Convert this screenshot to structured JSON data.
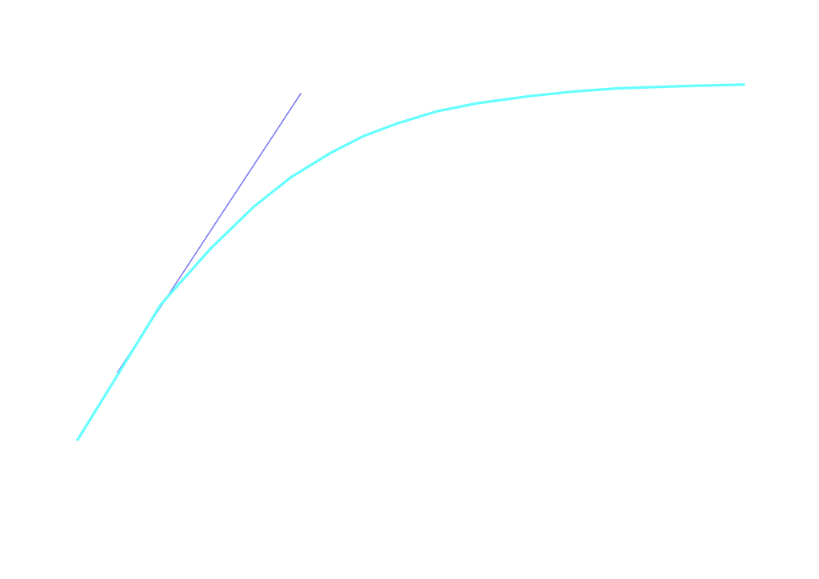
{
  "chart_data": {
    "type": "line",
    "title": "",
    "xlabel": "",
    "ylabel": "",
    "grid": false,
    "legend": "none",
    "xlim": [
      0,
      10
    ],
    "ylim": [
      0,
      1.0
    ],
    "series": [
      {
        "color": "#7b7bf0",
        "stroke": "thin",
        "x": [
          0.6,
          3.35
        ],
        "y": [
          0.195,
          1.0
        ]
      },
      {
        "color": "#66ffff",
        "stroke": "thick",
        "x": [
          0.0,
          0.6,
          1.25,
          2.0,
          2.65,
          3.2,
          3.8,
          4.3,
          4.8,
          5.4,
          6.0,
          6.8,
          7.4,
          8.1,
          9.0,
          10.0
        ],
        "y": [
          0.0,
          0.187,
          0.391,
          0.553,
          0.674,
          0.758,
          0.829,
          0.878,
          0.914,
          0.949,
          0.972,
          0.993,
          1.005,
          1.015,
          1.021,
          1.026
        ]
      }
    ]
  }
}
